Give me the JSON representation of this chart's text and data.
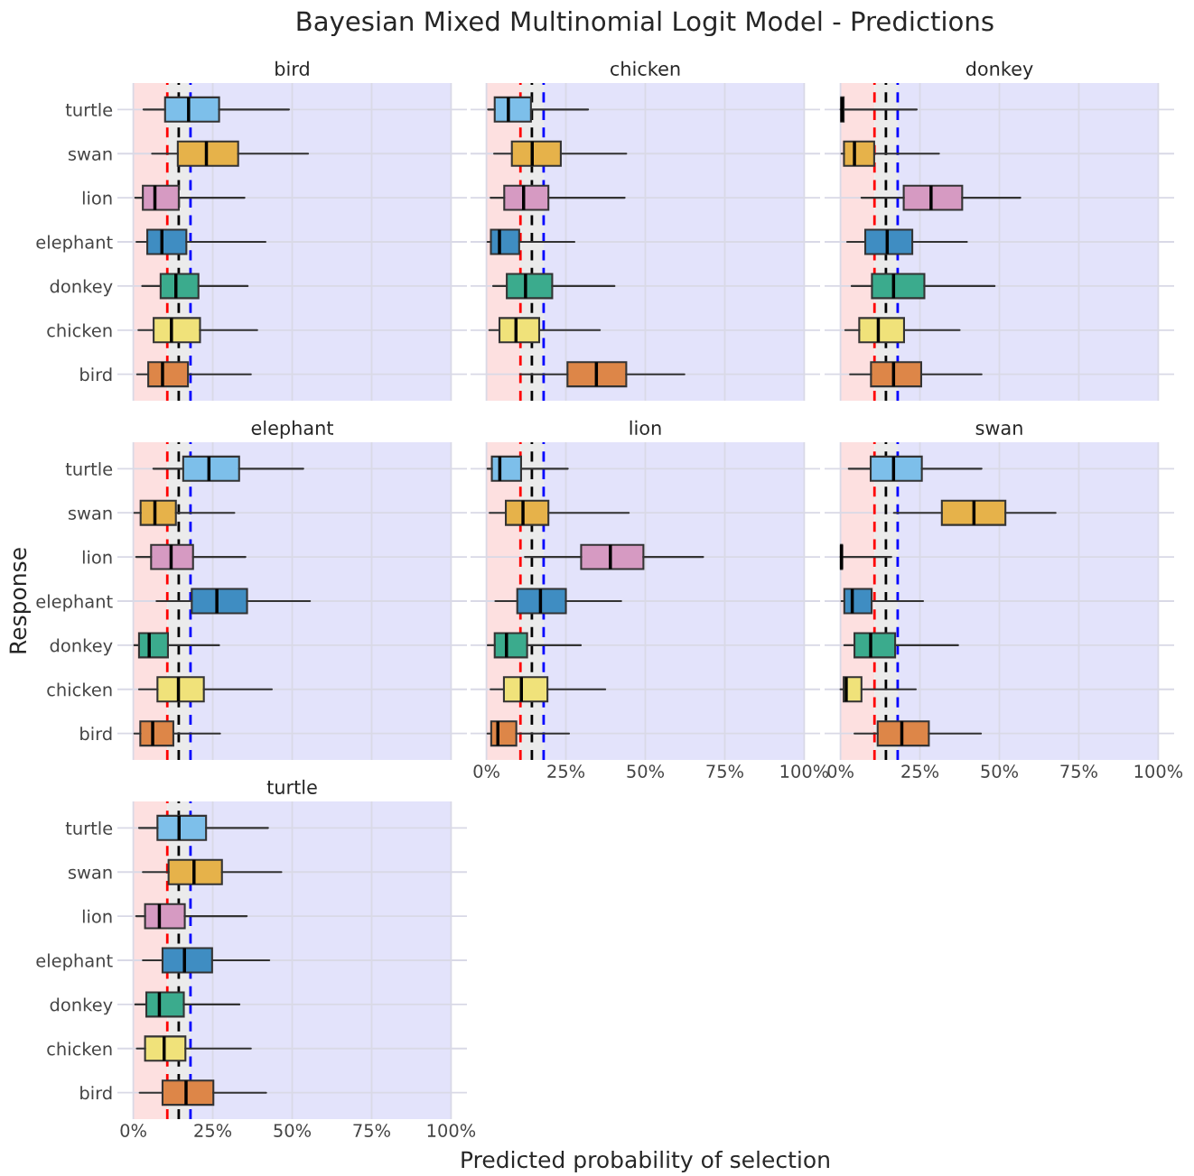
{
  "chart_data": [
    {
      "type": "box",
      "orientation": "horizontal",
      "title": "bird",
      "annotations": [
        "Bayesian Mixed Multinomial Logit Model - Predictions"
      ],
      "tick_labels": "y",
      "grid": true,
      "categories": [
        "turtle",
        "swan",
        "lion",
        "elephant",
        "donkey",
        "chicken",
        "bird"
      ],
      "colors": [
        "#7dbfea",
        "#e6b24a",
        "#d69ac2",
        "#3f8dc2",
        "#3bab8d",
        "#f0e27a",
        "#dd8648"
      ],
      "boxes": [
        {
          "low": 3.2,
          "q1": 10,
          "median": 17.4,
          "q3": 27,
          "high": 49
        },
        {
          "low": 5.9,
          "q1": 14,
          "median": 23,
          "q3": 33,
          "high": 55
        },
        {
          "low": 0.6,
          "q1": 3,
          "median": 6.8,
          "q3": 14.3,
          "high": 35
        },
        {
          "low": 1,
          "q1": 4.4,
          "median": 9,
          "q3": 16.7,
          "high": 41.6
        },
        {
          "low": 2.8,
          "q1": 8.6,
          "median": 13.4,
          "q3": 20.5,
          "high": 36
        },
        {
          "low": 1.6,
          "q1": 6.4,
          "median": 12,
          "q3": 21,
          "high": 39
        },
        {
          "low": 1.2,
          "q1": 4.7,
          "median": 9.2,
          "q3": 17.2,
          "high": 37
        }
      ],
      "xlim": [
        -5,
        105
      ],
      "xticks": [
        {
          "value": 0,
          "label": null
        },
        {
          "value": 25,
          "label": null
        },
        {
          "value": 50,
          "label": null
        },
        {
          "value": 75,
          "label": null
        },
        {
          "value": 100,
          "label": null
        }
      ],
      "bands": [
        {
          "axis": "x",
          "from": 0,
          "to": 10.7,
          "color": "#fde0e0"
        },
        {
          "axis": "x",
          "from": 10.7,
          "to": 18,
          "color": "#ebebeb"
        },
        {
          "axis": "x",
          "from": 18,
          "to": 100,
          "color": "#e3e3fb"
        }
      ],
      "ref_lines": [
        {
          "axis": "x",
          "value": 10.7,
          "color": "#ff0000",
          "line_style": "dashed"
        },
        {
          "axis": "x",
          "value": 14.3,
          "color": "#000000",
          "line_style": "dashed"
        },
        {
          "axis": "x",
          "value": 18,
          "color": "#0000ff",
          "line_style": "dashed"
        }
      ]
    },
    {
      "type": "box",
      "orientation": "horizontal",
      "title": "chicken",
      "tick_labels": false,
      "grid": true,
      "categories": [
        null,
        null,
        null,
        null,
        null,
        null,
        null
      ],
      "colors": [
        "#7dbfea",
        "#e6b24a",
        "#d69ac2",
        "#3f8dc2",
        "#3bab8d",
        "#f0e27a",
        "#dd8648"
      ],
      "boxes": [
        {
          "low": 0.5,
          "q1": 2.6,
          "median": 6.9,
          "q3": 14,
          "high": 32
        },
        {
          "low": 2.4,
          "q1": 8,
          "median": 14.4,
          "q3": 23.4,
          "high": 44
        },
        {
          "low": 1.3,
          "q1": 5.6,
          "median": 11.7,
          "q3": 19.5,
          "high": 43.5
        },
        {
          "low": 0.3,
          "q1": 1.4,
          "median": 4.1,
          "q3": 10.3,
          "high": 27.7
        },
        {
          "low": 2.1,
          "q1": 6.4,
          "median": 12.3,
          "q3": 20.7,
          "high": 40.3
        },
        {
          "low": 0.9,
          "q1": 4.1,
          "median": 9.3,
          "q3": 16.6,
          "high": 35.7
        },
        {
          "low": 10.6,
          "q1": 25.5,
          "median": 34.6,
          "q3": 44,
          "high": 62.3
        }
      ],
      "xlim": [
        -5,
        105
      ],
      "xticks": [
        {
          "value": 0,
          "label": null
        },
        {
          "value": 25,
          "label": null
        },
        {
          "value": 50,
          "label": null
        },
        {
          "value": 75,
          "label": null
        },
        {
          "value": 100,
          "label": null
        }
      ],
      "bands": [
        {
          "axis": "x",
          "from": 0,
          "to": 10.7,
          "color": "#fde0e0"
        },
        {
          "axis": "x",
          "from": 10.7,
          "to": 18,
          "color": "#ebebeb"
        },
        {
          "axis": "x",
          "from": 18,
          "to": 100,
          "color": "#e3e3fb"
        }
      ],
      "ref_lines": [
        {
          "axis": "x",
          "value": 10.7,
          "color": "#ff0000",
          "line_style": "dashed"
        },
        {
          "axis": "x",
          "value": 14.3,
          "color": "#000000",
          "line_style": "dashed"
        },
        {
          "axis": "x",
          "value": 18,
          "color": "#0000ff",
          "line_style": "dashed"
        }
      ]
    },
    {
      "type": "box",
      "orientation": "horizontal",
      "title": "donkey",
      "tick_labels": false,
      "grid": true,
      "categories": [
        null,
        null,
        null,
        null,
        null,
        null,
        null
      ],
      "colors": [
        "#7dbfea",
        "#e6b24a",
        "#d69ac2",
        "#3f8dc2",
        "#3bab8d",
        "#f0e27a",
        "#dd8648"
      ],
      "boxes": [
        {
          "low": 0,
          "q1": 0.2,
          "median": 0.5,
          "q3": 1,
          "high": 24
        },
        {
          "low": 0.3,
          "q1": 1.1,
          "median": 4.4,
          "q3": 10.6,
          "high": 31
        },
        {
          "low": 6.6,
          "q1": 19.9,
          "median": 28.5,
          "q3": 38.3,
          "high": 56.6
        },
        {
          "low": 2.1,
          "q1": 7.8,
          "median": 14.7,
          "q3": 22.6,
          "high": 39.8
        },
        {
          "low": 3.5,
          "q1": 9.9,
          "median": 16.7,
          "q3": 26.4,
          "high": 48.5
        },
        {
          "low": 1.5,
          "q1": 5.9,
          "median": 11.9,
          "q3": 20,
          "high": 37.5
        },
        {
          "low": 3,
          "q1": 9.6,
          "median": 16.7,
          "q3": 25.4,
          "high": 44.4
        }
      ],
      "xlim": [
        -5,
        105
      ],
      "xticks": [
        {
          "value": 0,
          "label": null
        },
        {
          "value": 25,
          "label": null
        },
        {
          "value": 50,
          "label": null
        },
        {
          "value": 75,
          "label": null
        },
        {
          "value": 100,
          "label": null
        }
      ],
      "bands": [
        {
          "axis": "x",
          "from": 0,
          "to": 10.7,
          "color": "#fde0e0"
        },
        {
          "axis": "x",
          "from": 10.7,
          "to": 18,
          "color": "#ebebeb"
        },
        {
          "axis": "x",
          "from": 18,
          "to": 100,
          "color": "#e3e3fb"
        }
      ],
      "ref_lines": [
        {
          "axis": "x",
          "value": 10.7,
          "color": "#ff0000",
          "line_style": "dashed"
        },
        {
          "axis": "x",
          "value": 14.3,
          "color": "#000000",
          "line_style": "dashed"
        },
        {
          "axis": "x",
          "value": 18,
          "color": "#0000ff",
          "line_style": "dashed"
        }
      ]
    },
    {
      "type": "box",
      "orientation": "horizontal",
      "title": "elephant",
      "ylabel": "Response",
      "tick_labels": "y",
      "grid": true,
      "categories": [
        "turtle",
        "swan",
        "lion",
        "elephant",
        "donkey",
        "chicken",
        "bird"
      ],
      "colors": [
        "#7dbfea",
        "#e6b24a",
        "#d69ac2",
        "#3f8dc2",
        "#3bab8d",
        "#f0e27a",
        "#dd8648"
      ],
      "boxes": [
        {
          "low": 6.3,
          "q1": 15.7,
          "median": 23.8,
          "q3": 33.3,
          "high": 53.5
        },
        {
          "low": 0.3,
          "q1": 2.3,
          "median": 6.8,
          "q3": 13.4,
          "high": 31.8
        },
        {
          "low": 0.9,
          "q1": 5.6,
          "median": 11.9,
          "q3": 18.8,
          "high": 35.3
        },
        {
          "low": 7.3,
          "q1": 18.4,
          "median": 26.3,
          "q3": 35.8,
          "high": 55.6
        },
        {
          "low": 0.3,
          "q1": 1.8,
          "median": 5,
          "q3": 10.9,
          "high": 27
        },
        {
          "low": 1.8,
          "q1": 7.6,
          "median": 14.2,
          "q3": 22.2,
          "high": 43.6
        },
        {
          "low": 0.3,
          "q1": 2.2,
          "median": 6.1,
          "q3": 12.6,
          "high": 27.3
        }
      ],
      "xlim": [
        -5,
        105
      ],
      "xticks": [
        {
          "value": 0,
          "label": null
        },
        {
          "value": 25,
          "label": null
        },
        {
          "value": 50,
          "label": null
        },
        {
          "value": 75,
          "label": null
        },
        {
          "value": 100,
          "label": null
        }
      ],
      "bands": [
        {
          "axis": "x",
          "from": 0,
          "to": 10.7,
          "color": "#fde0e0"
        },
        {
          "axis": "x",
          "from": 10.7,
          "to": 18,
          "color": "#ebebeb"
        },
        {
          "axis": "x",
          "from": 18,
          "to": 100,
          "color": "#e3e3fb"
        }
      ],
      "ref_lines": [
        {
          "axis": "x",
          "value": 10.7,
          "color": "#ff0000",
          "line_style": "dashed"
        },
        {
          "axis": "x",
          "value": 14.3,
          "color": "#000000",
          "line_style": "dashed"
        },
        {
          "axis": "x",
          "value": 18,
          "color": "#0000ff",
          "line_style": "dashed"
        }
      ]
    },
    {
      "type": "box",
      "orientation": "horizontal",
      "title": "lion",
      "xlabel": "Predicted probability of selection",
      "tick_labels": "x",
      "grid": true,
      "categories": [
        null,
        null,
        null,
        null,
        null,
        null,
        null
      ],
      "colors": [
        "#7dbfea",
        "#e6b24a",
        "#d69ac2",
        "#3f8dc2",
        "#3bab8d",
        "#f0e27a",
        "#dd8648"
      ],
      "boxes": [
        {
          "low": 0.3,
          "q1": 1.7,
          "median": 4.2,
          "q3": 10.9,
          "high": 25.6
        },
        {
          "low": 1,
          "q1": 6.1,
          "median": 11.5,
          "q3": 19.5,
          "high": 44.8
        },
        {
          "low": 12.1,
          "q1": 29.8,
          "median": 39,
          "q3": 49.4,
          "high": 68.2
        },
        {
          "low": 2.8,
          "q1": 9.7,
          "median": 17,
          "q3": 25,
          "high": 42.4
        },
        {
          "low": 0.4,
          "q1": 2.6,
          "median": 6.3,
          "q3": 12.8,
          "high": 29.7
        },
        {
          "low": 1.3,
          "q1": 5.5,
          "median": 11,
          "q3": 19.2,
          "high": 37.4
        },
        {
          "low": 0.3,
          "q1": 1.5,
          "median": 3.6,
          "q3": 9.4,
          "high": 26
        }
      ],
      "xlim": [
        -5,
        105
      ],
      "xticks": [
        {
          "value": 0,
          "label": "0%"
        },
        {
          "value": 25,
          "label": "25%"
        },
        {
          "value": 50,
          "label": "50%"
        },
        {
          "value": 75,
          "label": "75%"
        },
        {
          "value": 100,
          "label": "100%"
        }
      ],
      "bands": [
        {
          "axis": "x",
          "from": 0,
          "to": 10.7,
          "color": "#fde0e0"
        },
        {
          "axis": "x",
          "from": 10.7,
          "to": 18,
          "color": "#ebebeb"
        },
        {
          "axis": "x",
          "from": 18,
          "to": 100,
          "color": "#e3e3fb"
        }
      ],
      "ref_lines": [
        {
          "axis": "x",
          "value": 10.7,
          "color": "#ff0000",
          "line_style": "dashed"
        },
        {
          "axis": "x",
          "value": 14.3,
          "color": "#000000",
          "line_style": "dashed"
        },
        {
          "axis": "x",
          "value": 18,
          "color": "#0000ff",
          "line_style": "dashed"
        }
      ]
    },
    {
      "type": "box",
      "orientation": "horizontal",
      "title": "swan",
      "tick_labels": "x",
      "grid": true,
      "categories": [
        null,
        null,
        null,
        null,
        null,
        null,
        null
      ],
      "colors": [
        "#7dbfea",
        "#e6b24a",
        "#d69ac2",
        "#3f8dc2",
        "#3bab8d",
        "#f0e27a",
        "#dd8648"
      ],
      "boxes": [
        {
          "low": 2.6,
          "q1": 9.5,
          "median": 16.7,
          "q3": 25.6,
          "high": 44.4
        },
        {
          "low": 16.8,
          "q1": 31.9,
          "median": 42,
          "q3": 51.9,
          "high": 67.7
        },
        {
          "low": 0,
          "q1": 0.1,
          "median": 0.3,
          "q3": 0.5,
          "high": 16
        },
        {
          "low": 0.3,
          "q1": 1.2,
          "median": 3.7,
          "q3": 9.8,
          "high": 26
        },
        {
          "low": 1.2,
          "q1": 4.4,
          "median": 9.5,
          "q3": 17.2,
          "high": 37
        },
        {
          "low": 0,
          "q1": 1,
          "median": 1.8,
          "q3": 6.6,
          "high": 23.7
        },
        {
          "low": 4.4,
          "q1": 11.7,
          "median": 19.3,
          "q3": 27.8,
          "high": 44.2
        }
      ],
      "xlim": [
        -5,
        105
      ],
      "xticks": [
        {
          "value": 0,
          "label": "0%"
        },
        {
          "value": 25,
          "label": "25%"
        },
        {
          "value": 50,
          "label": "50%"
        },
        {
          "value": 75,
          "label": "75%"
        },
        {
          "value": 100,
          "label": "100%"
        }
      ],
      "bands": [
        {
          "axis": "x",
          "from": 0,
          "to": 10.7,
          "color": "#fde0e0"
        },
        {
          "axis": "x",
          "from": 10.7,
          "to": 18,
          "color": "#ebebeb"
        },
        {
          "axis": "x",
          "from": 18,
          "to": 100,
          "color": "#e3e3fb"
        }
      ],
      "ref_lines": [
        {
          "axis": "x",
          "value": 10.7,
          "color": "#ff0000",
          "line_style": "dashed"
        },
        {
          "axis": "x",
          "value": 14.3,
          "color": "#000000",
          "line_style": "dashed"
        },
        {
          "axis": "x",
          "value": 18,
          "color": "#0000ff",
          "line_style": "dashed"
        }
      ]
    },
    {
      "type": "box",
      "orientation": "horizontal",
      "title": "turtle",
      "grid": true,
      "categories": [
        "turtle",
        "swan",
        "lion",
        "elephant",
        "donkey",
        "chicken",
        "bird"
      ],
      "colors": [
        "#7dbfea",
        "#e6b24a",
        "#d69ac2",
        "#3f8dc2",
        "#3bab8d",
        "#f0e27a",
        "#dd8648"
      ],
      "boxes": [
        {
          "low": 1.8,
          "q1": 7.6,
          "median": 14.4,
          "q3": 22.9,
          "high": 42.4
        },
        {
          "low": 3,
          "q1": 11.1,
          "median": 19.1,
          "q3": 27.9,
          "high": 46.6
        },
        {
          "low": 0.9,
          "q1": 3.7,
          "median": 8.2,
          "q3": 16.2,
          "high": 35.7
        },
        {
          "low": 3,
          "q1": 9.2,
          "median": 16.1,
          "q3": 24.8,
          "high": 42.8
        },
        {
          "low": 0.6,
          "q1": 4.1,
          "median": 8.2,
          "q3": 15.9,
          "high": 33.4
        },
        {
          "low": 1.1,
          "q1": 3.7,
          "median": 9.7,
          "q3": 16.4,
          "high": 37
        },
        {
          "low": 2,
          "q1": 9.2,
          "median": 16.6,
          "q3": 25.2,
          "high": 41.8
        }
      ],
      "xlim": [
        -5,
        105
      ],
      "xticks": [
        {
          "value": 0,
          "label": "0%"
        },
        {
          "value": 25,
          "label": "25%"
        },
        {
          "value": 50,
          "label": "50%"
        },
        {
          "value": 75,
          "label": "75%"
        },
        {
          "value": 100,
          "label": "100%"
        }
      ],
      "bands": [
        {
          "axis": "x",
          "from": 0,
          "to": 10.7,
          "color": "#fde0e0"
        },
        {
          "axis": "x",
          "from": 10.7,
          "to": 18,
          "color": "#ebebeb"
        },
        {
          "axis": "x",
          "from": 18,
          "to": 100,
          "color": "#e3e3fb"
        }
      ],
      "ref_lines": [
        {
          "axis": "x",
          "value": 10.7,
          "color": "#ff0000",
          "line_style": "dashed"
        },
        {
          "axis": "x",
          "value": 14.3,
          "color": "#000000",
          "line_style": "dashed"
        },
        {
          "axis": "x",
          "value": 18,
          "color": "#0000ff",
          "line_style": "dashed"
        }
      ]
    }
  ]
}
